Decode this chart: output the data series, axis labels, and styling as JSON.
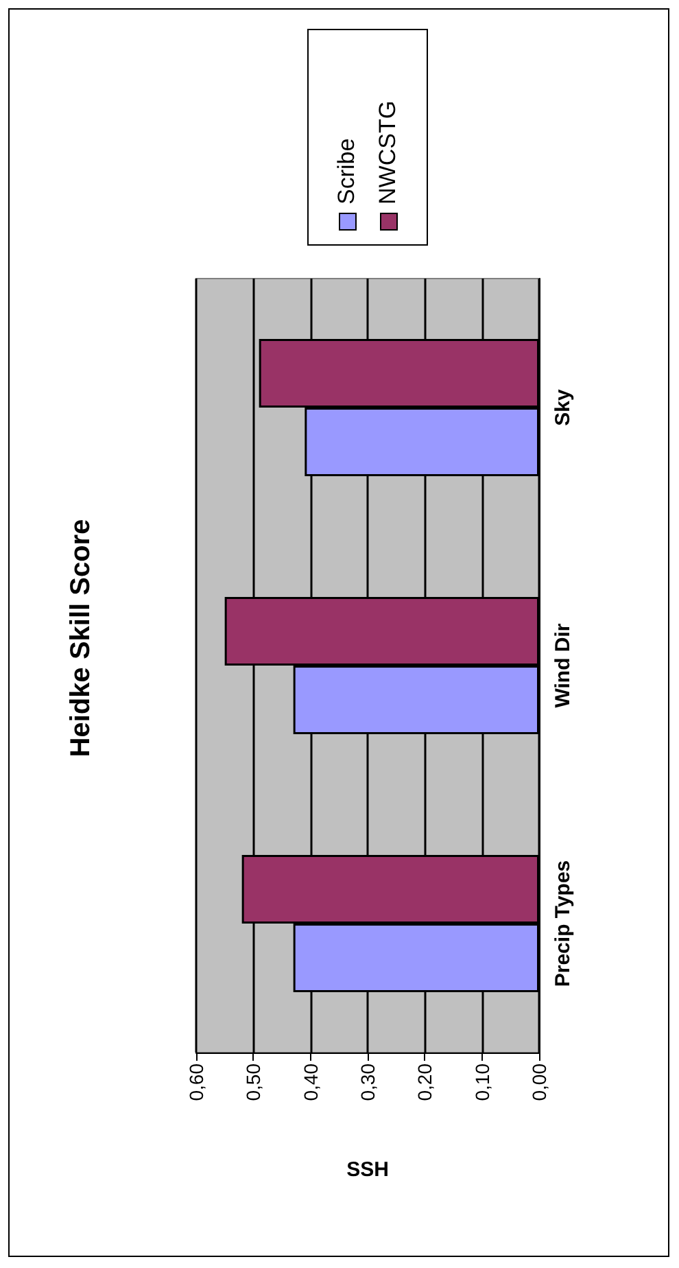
{
  "chart_data": {
    "type": "bar",
    "orientation": "horizontal",
    "title": "Heidke Skill Score",
    "xlabel": "SSH",
    "categories": [
      "Sky",
      "Wind Dir",
      "Precip Types"
    ],
    "series": [
      {
        "name": "Scribe",
        "color": "#9999ff",
        "values": [
          0.41,
          0.43,
          0.43
        ]
      },
      {
        "name": "NWCSTG",
        "color": "#993366",
        "values": [
          0.49,
          0.55,
          0.52
        ]
      }
    ],
    "xlim": [
      0.6,
      0
    ],
    "xticks": [
      {
        "value": 0.6,
        "label": "0,60"
      },
      {
        "value": 0.5,
        "label": "0,50"
      },
      {
        "value": 0.4,
        "label": "0,40"
      },
      {
        "value": 0.3,
        "label": "0,30"
      },
      {
        "value": 0.2,
        "label": "0,20"
      },
      {
        "value": 0.1,
        "label": "0,10"
      },
      {
        "value": 0,
        "label": "0,00"
      }
    ],
    "grid": "x",
    "legend": "top right"
  }
}
